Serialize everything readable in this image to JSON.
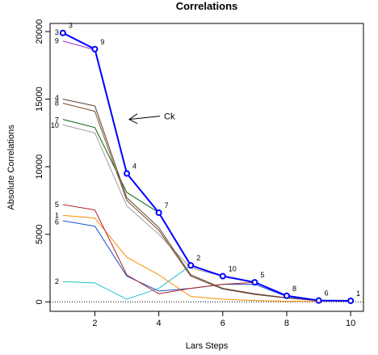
{
  "chart_data": {
    "type": "line",
    "title": "Correlations",
    "xlabel": "Lars Steps",
    "ylabel": "Absolute Correlations",
    "xlim": [
      0.6,
      10.4
    ],
    "ylim": [
      -700,
      20600
    ],
    "x_ticks": [
      2,
      4,
      6,
      8,
      10
    ],
    "y_ticks": [
      0,
      5000,
      10000,
      15000,
      20000
    ],
    "x_tick_labels": [
      "2",
      "4",
      "6",
      "8",
      "10"
    ],
    "y_tick_labels": [
      "0",
      "5000",
      "10000",
      "15000",
      "20000"
    ],
    "zero_line": "dotted",
    "series": [
      {
        "name": "3",
        "color": "#0000ff",
        "x": [
          1,
          2,
          3,
          4,
          5,
          6,
          7,
          8,
          9,
          10
        ],
        "y": [
          19900,
          18700,
          9500,
          6600,
          2700,
          1900,
          1450,
          450,
          100,
          80
        ]
      },
      {
        "name": "9",
        "color": "#9932cc",
        "x": [
          1,
          2
        ],
        "y": [
          19300,
          18650
        ]
      },
      {
        "name": "4",
        "color": "#5c4033",
        "x": [
          1,
          2,
          3,
          4,
          5,
          6,
          7,
          8,
          9,
          10
        ],
        "y": [
          15000,
          14500,
          7700,
          5500,
          2000,
          1000,
          600,
          300,
          100,
          60
        ]
      },
      {
        "name": "8",
        "color": "#7a4a2a",
        "x": [
          1,
          2,
          3,
          4,
          5,
          6,
          7,
          8,
          9,
          10
        ],
        "y": [
          14700,
          14100,
          7500,
          5300,
          1900,
          950,
          550,
          280,
          90,
          50
        ]
      },
      {
        "name": "7",
        "color": "#006400",
        "x": [
          1,
          2,
          3,
          4
        ],
        "y": [
          13500,
          12900,
          8100,
          6600
        ]
      },
      {
        "name": "10",
        "color": "#a0a0a0",
        "x": [
          1,
          2,
          3,
          4,
          5,
          6
        ],
        "y": [
          13100,
          12500,
          7100,
          5000,
          2500,
          1900
        ]
      },
      {
        "name": "5",
        "color": "#b22222",
        "x": [
          1,
          2,
          3,
          4,
          5,
          6,
          7
        ],
        "y": [
          7200,
          6800,
          2000,
          600,
          1000,
          1300,
          1450
        ]
      },
      {
        "name": "1",
        "color": "#ff8c00",
        "x": [
          1,
          2,
          3,
          4,
          5,
          6,
          7,
          8,
          9,
          10
        ],
        "y": [
          6400,
          6200,
          3300,
          2000,
          400,
          200,
          100,
          50,
          40,
          80
        ]
      },
      {
        "name": "6",
        "color": "#1e50d0",
        "x": [
          1,
          2,
          3,
          4,
          5,
          6,
          7,
          8,
          9
        ],
        "y": [
          6000,
          5600,
          1900,
          800,
          1000,
          1300,
          1300,
          400,
          100
        ]
      },
      {
        "name": "2",
        "color": "#20c0c8",
        "x": [
          1,
          2,
          3,
          4,
          5
        ],
        "y": [
          1500,
          1400,
          200,
          1000,
          2700
        ]
      }
    ],
    "step_labels": [
      {
        "text": "3",
        "x": 1,
        "y": 19900
      },
      {
        "text": "9",
        "x": 2,
        "y": 18700
      },
      {
        "text": "4",
        "x": 3,
        "y": 9500
      },
      {
        "text": "7",
        "x": 4,
        "y": 6600
      },
      {
        "text": "2",
        "x": 5,
        "y": 2700
      },
      {
        "text": "10",
        "x": 6,
        "y": 1900
      },
      {
        "text": "5",
        "x": 7,
        "y": 1450
      },
      {
        "text": "8",
        "x": 8,
        "y": 450
      },
      {
        "text": "6",
        "x": 9,
        "y": 100
      },
      {
        "text": "1",
        "x": 10,
        "y": 80
      }
    ],
    "start_labels": [
      {
        "text": "3",
        "y": 19950
      },
      {
        "text": "9",
        "y": 19300
      },
      {
        "text": "4",
        "y": 15100
      },
      {
        "text": "8",
        "y": 14700
      },
      {
        "text": "7",
        "y": 13450
      },
      {
        "text": "10",
        "y": 13050
      },
      {
        "text": "5",
        "y": 7200
      },
      {
        "text": "1",
        "y": 6400
      },
      {
        "text": "6",
        "y": 5900
      },
      {
        "text": "2",
        "y": 1500
      }
    ],
    "annotation": {
      "text": "Ck",
      "arrow_to_x": 3,
      "arrow_to_y": 13500
    }
  }
}
